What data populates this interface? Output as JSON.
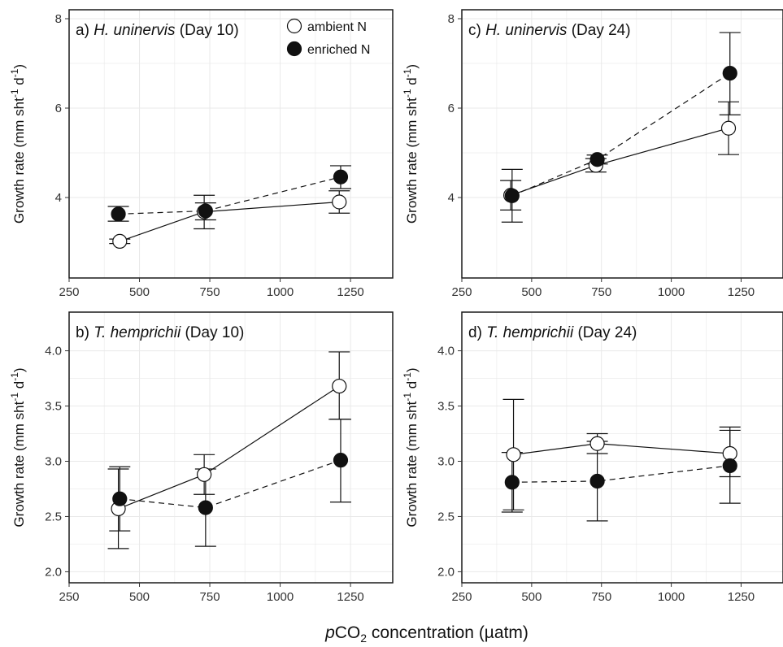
{
  "figure": {
    "xlabel_prefix": "p",
    "xlabel_main": "CO",
    "xlabel_sub": "2",
    "xlabel_rest": " concentration (µatm)"
  },
  "legend": {
    "ambient": "ambient N",
    "enriched": "enriched N"
  },
  "chart_data": [
    {
      "type": "line",
      "panel": "a",
      "title_prefix": "a) ",
      "title_italic": "H. uninervis",
      "title_suffix": " (Day 10)",
      "ylabel_main": "Growth rate (mm sht",
      "ylabel_sup1": "-1",
      "ylabel_mid": " d",
      "ylabel_sup2": "-1",
      "ylabel_end": ")",
      "xlim": [
        250,
        1400
      ],
      "ylim": [
        2.2,
        8.2
      ],
      "xticks": [
        250,
        500,
        750,
        1000,
        1250
      ],
      "yticks": [
        4,
        6,
        8
      ],
      "xtick_labels": [
        "250",
        "500",
        "750",
        "1000",
        "1250"
      ],
      "ytick_labels": [
        "4",
        "6",
        "8"
      ],
      "grid": true,
      "legend_position": "top-right",
      "series": [
        {
          "name": "ambient N",
          "style": "open-solid",
          "x": [
            430,
            730,
            1210
          ],
          "y": [
            3.02,
            3.68,
            3.9
          ],
          "err_low": [
            2.97,
            3.3,
            3.65
          ],
          "err_high": [
            3.07,
            4.05,
            4.15
          ]
        },
        {
          "name": "enriched N",
          "style": "filled-dashed",
          "x": [
            425,
            735,
            1215
          ],
          "y": [
            3.63,
            3.7,
            4.46
          ],
          "err_low": [
            3.47,
            3.5,
            4.2
          ],
          "err_high": [
            3.8,
            3.88,
            4.71
          ]
        }
      ]
    },
    {
      "type": "line",
      "panel": "c",
      "title_prefix": "c) ",
      "title_italic": "H. uninervis",
      "title_suffix": " (Day 24)",
      "ylabel_main": "Growth rate (mm sht",
      "ylabel_sup1": "-1",
      "ylabel_mid": " d",
      "ylabel_sup2": "-1",
      "ylabel_end": ")",
      "xlim": [
        250,
        1400
      ],
      "ylim": [
        2.2,
        8.2
      ],
      "xticks": [
        250,
        500,
        750,
        1000,
        1250
      ],
      "yticks": [
        4,
        6,
        8
      ],
      "xtick_labels": [
        "250",
        "500",
        "750",
        "1000",
        "1250"
      ],
      "ytick_labels": [
        "4",
        "6",
        "8"
      ],
      "grid": true,
      "series": [
        {
          "name": "ambient N",
          "style": "open-solid",
          "x": [
            425,
            730,
            1205
          ],
          "y": [
            4.05,
            4.72,
            5.55
          ],
          "err_low": [
            3.72,
            4.57,
            4.96
          ],
          "err_high": [
            4.38,
            4.87,
            6.14
          ]
        },
        {
          "name": "enriched N",
          "style": "filled-dashed",
          "x": [
            430,
            735,
            1210
          ],
          "y": [
            4.04,
            4.85,
            6.78
          ],
          "err_low": [
            3.45,
            4.75,
            5.85
          ],
          "err_high": [
            4.63,
            4.95,
            7.69
          ]
        }
      ]
    },
    {
      "type": "line",
      "panel": "b",
      "title_prefix": "b) ",
      "title_italic": "T. hemprichii",
      "title_suffix": " (Day 10)",
      "ylabel_main": "Growth rate (mm sht",
      "ylabel_sup1": "-1",
      "ylabel_mid": " d",
      "ylabel_sup2": "-1",
      "ylabel_end": ")",
      "xlim": [
        250,
        1400
      ],
      "ylim": [
        1.9,
        4.35
      ],
      "xticks": [
        250,
        500,
        750,
        1000,
        1250
      ],
      "yticks": [
        2.0,
        2.5,
        3.0,
        3.5,
        4.0
      ],
      "xtick_labels": [
        "250",
        "500",
        "750",
        "1000",
        "1250"
      ],
      "ytick_labels": [
        "2.0",
        "2.5",
        "3.0",
        "3.5",
        "4.0"
      ],
      "grid": true,
      "series": [
        {
          "name": "ambient N",
          "style": "open-solid",
          "x": [
            425,
            730,
            1210
          ],
          "y": [
            2.57,
            2.88,
            3.68
          ],
          "err_low": [
            2.21,
            2.7,
            3.38
          ],
          "err_high": [
            2.93,
            3.06,
            3.99
          ]
        },
        {
          "name": "enriched N",
          "style": "filled-dashed",
          "x": [
            430,
            735,
            1215
          ],
          "y": [
            2.66,
            2.58,
            3.01
          ],
          "err_low": [
            2.37,
            2.23,
            2.63
          ],
          "err_high": [
            2.95,
            2.93,
            3.38
          ]
        }
      ]
    },
    {
      "type": "line",
      "panel": "d",
      "title_prefix": "d) ",
      "title_italic": "T. hemprichii",
      "title_suffix": " (Day 24)",
      "ylabel_main": "Growth rate (mm sht",
      "ylabel_sup1": "-1",
      "ylabel_mid": " d",
      "ylabel_sup2": "-1",
      "ylabel_end": ")",
      "xlim": [
        250,
        1400
      ],
      "ylim": [
        1.9,
        4.35
      ],
      "xticks": [
        250,
        500,
        750,
        1000,
        1250
      ],
      "yticks": [
        2.0,
        2.5,
        3.0,
        3.5,
        4.0
      ],
      "xtick_labels": [
        "250",
        "500",
        "750",
        "1000",
        "1250"
      ],
      "ytick_labels": [
        "2.0",
        "2.5",
        "3.0",
        "3.5",
        "4.0"
      ],
      "grid": true,
      "series": [
        {
          "name": "ambient N",
          "style": "open-solid",
          "x": [
            435,
            735,
            1210
          ],
          "y": [
            3.06,
            3.16,
            3.07
          ],
          "err_low": [
            2.56,
            3.07,
            2.86
          ],
          "err_high": [
            3.56,
            3.25,
            3.28
          ]
        },
        {
          "name": "enriched N",
          "style": "filled-dashed",
          "x": [
            430,
            735,
            1210
          ],
          "y": [
            2.81,
            2.82,
            2.96
          ],
          "err_low": [
            2.54,
            2.46,
            2.62
          ],
          "err_high": [
            3.08,
            3.18,
            3.31
          ]
        }
      ]
    }
  ]
}
